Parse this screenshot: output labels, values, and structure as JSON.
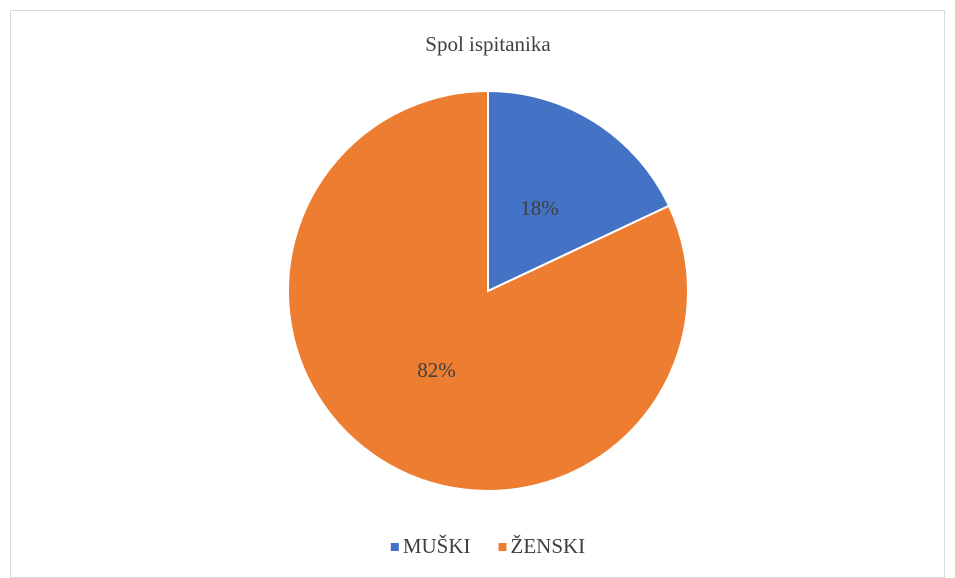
{
  "chart_data": {
    "type": "pie",
    "title": "Spol ispitanika",
    "categories": [
      "MUŠKI",
      "ŽENSKI"
    ],
    "values": [
      18,
      82
    ],
    "value_labels": [
      "18%",
      "82%"
    ],
    "colors": [
      "#4472c4",
      "#ed7d31"
    ],
    "legend": "bottom"
  }
}
